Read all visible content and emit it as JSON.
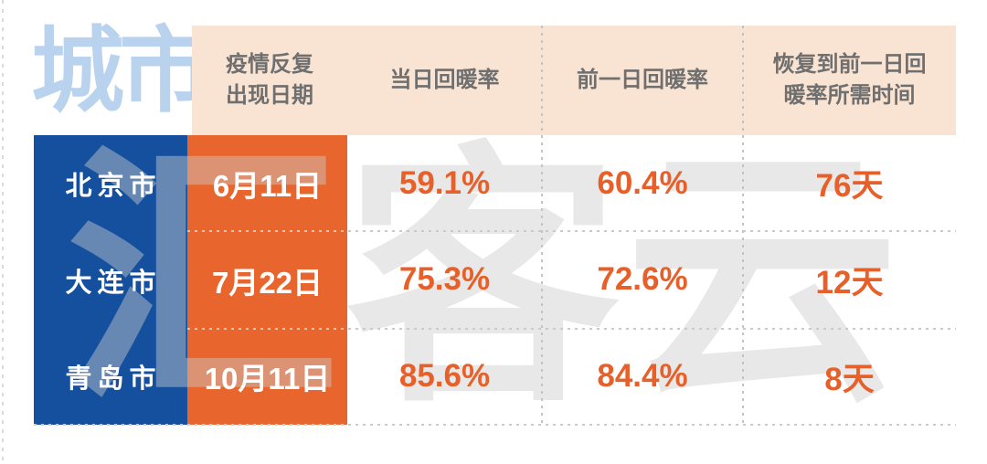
{
  "page": {
    "title_label": "城市",
    "watermark": "汇客云",
    "colors": {
      "city_column_blue": "#15509f",
      "date_column_orange": "#e8652d",
      "header_cream": "#f9e4d3",
      "accent_text_orange": "#e7602a",
      "title_light_blue": "#b9d3ee",
      "header_text_gray": "#6f6f6f",
      "dashed_line_gray": "#c6c6c6"
    }
  },
  "table": {
    "headers": [
      {
        "label": "疫情反复\n出现日期"
      },
      {
        "label": "当日回暖率"
      },
      {
        "label": "前一日回暖率"
      },
      {
        "label": "恢复到前一日回\n暖率所需时间"
      }
    ],
    "rows": [
      {
        "city": "北京市",
        "date": "6月11日",
        "values": [
          "59.1%",
          "60.4%",
          "76天"
        ]
      },
      {
        "city": "大连市",
        "date": "7月22日",
        "values": [
          "75.3%",
          "72.6%",
          "12天"
        ]
      },
      {
        "city": "青岛市",
        "date": "10月11日",
        "values": [
          "85.6%",
          "84.4%",
          "8天"
        ]
      }
    ]
  },
  "chart_data": {
    "type": "table",
    "title": "城市疫情反复回暖率对比表",
    "columns": [
      "城市",
      "疫情反复出现日期",
      "当日回暖率",
      "前一日回暖率",
      "恢复到前一日回暖率所需时间"
    ],
    "rows": [
      [
        "北京市",
        "6月11日",
        "59.1%",
        "60.4%",
        "76天"
      ],
      [
        "大连市",
        "7月22日",
        "75.3%",
        "72.6%",
        "12天"
      ],
      [
        "青岛市",
        "10月11日",
        "85.6%",
        "84.4%",
        "8天"
      ]
    ],
    "numeric": {
      "cities": [
        "北京市",
        "大连市",
        "青岛市"
      ],
      "recurrence_dates": [
        "6月11日",
        "7月22日",
        "10月11日"
      ],
      "same_day_recovery_rate_pct": [
        59.1,
        75.3,
        85.6
      ],
      "previous_day_recovery_rate_pct": [
        60.4,
        72.6,
        84.4
      ],
      "days_to_recover_to_previous_rate": [
        76,
        12,
        8
      ]
    },
    "layout": {
      "watermark": "汇客云",
      "grid": "dashed"
    }
  }
}
